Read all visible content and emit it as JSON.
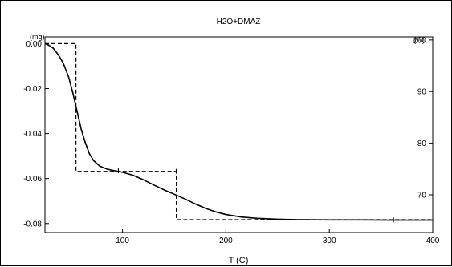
{
  "chart_data": {
    "type": "line",
    "title": "H2O+DMAZ",
    "xlabel": "T (C)",
    "ylabel": "(mg)",
    "y2label": "(%)",
    "xlim": [
      25,
      400
    ],
    "ylim": [
      -0.084,
      0.003
    ],
    "y2lim": [
      62.7,
      100.6
    ],
    "x_ticks": [
      "100",
      "200",
      "300",
      "400"
    ],
    "x_tick_values": [
      100,
      200,
      300,
      400
    ],
    "y_ticks": [
      "0.00",
      "-0.02",
      "-0.04",
      "-0.06",
      "-0.08"
    ],
    "y_tick_values": [
      0,
      -0.02,
      -0.04,
      -0.06,
      -0.08
    ],
    "y2_ticks": [
      "100",
      "90",
      "80",
      "70"
    ],
    "y2_tick_values": [
      100,
      90,
      80,
      70
    ],
    "grid": false,
    "legend": "none",
    "series": [
      {
        "color": "#000000",
        "style": "solid",
        "x": [
          25,
          28,
          33,
          38,
          43,
          48,
          52,
          56,
          60,
          64,
          68,
          72,
          78,
          85,
          92,
          100,
          110,
          120,
          130,
          140,
          150,
          160,
          170,
          180,
          190,
          200,
          215,
          230,
          250,
          270,
          300,
          330,
          360,
          400
        ],
        "y": [
          0.0,
          -0.0005,
          -0.002,
          -0.005,
          -0.009,
          -0.015,
          -0.022,
          -0.03,
          -0.038,
          -0.044,
          -0.049,
          -0.052,
          -0.0545,
          -0.0558,
          -0.0565,
          -0.0572,
          -0.0585,
          -0.0605,
          -0.0628,
          -0.065,
          -0.067,
          -0.069,
          -0.0712,
          -0.0732,
          -0.0748,
          -0.076,
          -0.0771,
          -0.0777,
          -0.0781,
          -0.0783,
          -0.0784,
          -0.0784,
          -0.0785,
          -0.0785
        ]
      },
      {
        "color": "#000000",
        "style": "dashed",
        "x": [
          25,
          55,
          55,
          152,
          152,
          400
        ],
        "y": [
          0.0,
          0.0,
          -0.0568,
          -0.0568,
          -0.0783,
          -0.0783
        ]
      }
    ],
    "markers": [
      {
        "x": 96,
        "y": -0.0566
      },
      {
        "x": 152,
        "y": -0.0568
      },
      {
        "x": 362,
        "y": -0.0784
      }
    ]
  }
}
